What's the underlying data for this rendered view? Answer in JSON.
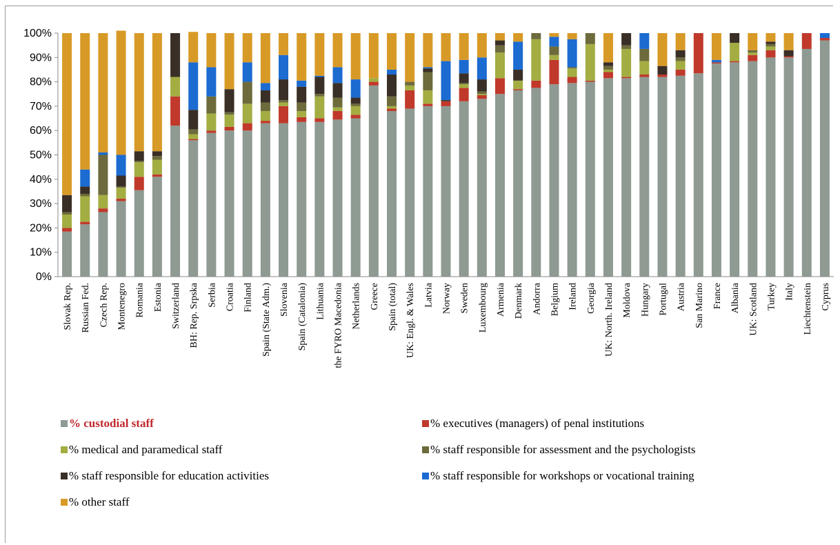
{
  "chart_data": {
    "type": "bar",
    "stacked": true,
    "ylim": [
      0,
      100
    ],
    "yticks": [
      "0%",
      "10%",
      "20%",
      "30%",
      "40%",
      "50%",
      "60%",
      "70%",
      "80%",
      "90%",
      "100%"
    ],
    "grid": false,
    "legend_position": "bottom",
    "categories": [
      "Slovak Rep.",
      "Russian Fed.",
      "Czech Rep.",
      "Montenegro",
      "Romania",
      "Estonia",
      "Switzerland",
      "BH: Rep. Srpska",
      "Serbia",
      "Croatia",
      "Finland",
      "Spain (State Adm.)",
      "Slovenia",
      "Spain (Catalonia)",
      "Lithuania",
      "the FYRO Macedonia",
      "Netherlands",
      "Greece",
      "Spain (total)",
      "UK: Engl. & Wales",
      "Latvia",
      "Norway",
      "Sweden",
      "Luxembourg",
      "Armenia",
      "Denmark",
      "Andorra",
      "Belgium",
      "Ireland",
      "Georgia",
      "UK: North. Ireland",
      "Moldova",
      "Hungary",
      "Portugal",
      "Austria",
      "San Marino",
      "France",
      "Albania",
      "UK: Scotland",
      "Turkey",
      "Italy",
      "Liechtenstein",
      "Cyprus"
    ],
    "series": [
      {
        "name": "% custodial staff",
        "color": "#8e9a92",
        "highlight": true,
        "values": [
          18.5,
          21.5,
          26.5,
          31,
          35.5,
          41,
          62,
          56,
          59,
          60,
          60,
          63,
          63,
          63.5,
          63.5,
          64.5,
          65,
          78.5,
          68,
          69,
          70,
          70,
          72,
          73,
          75,
          76.5,
          77.5,
          79,
          79.5,
          80,
          81.5,
          81.5,
          82,
          82,
          82.5,
          83.5,
          87.5,
          88,
          88.5,
          90,
          90,
          93.5,
          97
        ]
      },
      {
        "name": "% executives (managers) of penal institutions",
        "color": "#c0392b",
        "values": [
          1.5,
          1,
          1.5,
          1,
          5.5,
          1,
          12,
          0.5,
          1,
          1.5,
          3,
          1,
          7,
          2,
          1.5,
          3.5,
          1.5,
          1.5,
          1,
          7.5,
          1,
          2,
          5.5,
          1.5,
          6.5,
          0.5,
          3,
          10,
          2.5,
          0.5,
          2.5,
          0.5,
          1,
          1,
          2.5,
          16.5,
          0.5,
          0.5,
          2.5,
          3,
          0.5,
          6.5,
          1
        ]
      },
      {
        "name": "% medical and paramedical staff",
        "color": "#a3ad42",
        "values": [
          5.5,
          10.5,
          5.5,
          4.5,
          6,
          6,
          8,
          2,
          7,
          5,
          8,
          4,
          1.5,
          2.5,
          9,
          1.5,
          3.5,
          1.5,
          1,
          2,
          5.5,
          0,
          1.5,
          0.5,
          10.5,
          3.5,
          17,
          2,
          3.5,
          15,
          1,
          11.5,
          5.5,
          0,
          3.5,
          0,
          0,
          7.5,
          1,
          1.5,
          0,
          0,
          0
        ]
      },
      {
        "name": "% staff responsible for assessment and the psychologists",
        "color": "#6d6b3c",
        "values": [
          1,
          1,
          16.5,
          0.5,
          0.5,
          1.5,
          0,
          2,
          7,
          1,
          9,
          3.5,
          1,
          3.5,
          1,
          4,
          1,
          0,
          4,
          1.5,
          7.5,
          0,
          0.5,
          1,
          3,
          0,
          2.5,
          3.5,
          0.5,
          4.5,
          1.5,
          1.5,
          5,
          0,
          1.5,
          0,
          0,
          0,
          1,
          1,
          0,
          0,
          0
        ]
      },
      {
        "name": "% staff responsible for education activities",
        "color": "#3a2f26",
        "values": [
          7,
          3,
          0,
          4.5,
          4,
          2,
          18,
          8,
          0,
          9.5,
          0,
          5,
          8.5,
          6.5,
          7,
          6,
          2.5,
          0,
          9,
          0,
          1.5,
          0.5,
          4,
          5,
          2,
          4.5,
          0,
          0,
          0,
          0,
          1.5,
          5,
          0,
          3.5,
          3,
          0,
          0,
          4,
          0,
          1,
          2.5,
          0,
          0
        ]
      },
      {
        "name": "% staff responsible for workshops or vocational training",
        "color": "#1b6bd1",
        "values": [
          0,
          7,
          1,
          8.5,
          0,
          0,
          0,
          19.5,
          12,
          0,
          8,
          3,
          10,
          2.5,
          0.5,
          6.5,
          7.5,
          0,
          2,
          0,
          0.5,
          16,
          5.5,
          9,
          0,
          11.5,
          0,
          4,
          11.5,
          0,
          0,
          0,
          6.5,
          0,
          0,
          0,
          1,
          0,
          0,
          0,
          0,
          0,
          2
        ]
      },
      {
        "name": "% other staff",
        "color": "#d89a27",
        "values": [
          66.5,
          56,
          49,
          51,
          48.5,
          48.5,
          0,
          12.5,
          14,
          23,
          12,
          20.5,
          9,
          19.5,
          17.5,
          14,
          19,
          18.5,
          15,
          20,
          14,
          11.5,
          11,
          10,
          3,
          3.5,
          0,
          1.5,
          2.5,
          0,
          12,
          0,
          0,
          13.5,
          7,
          0,
          11,
          0,
          7,
          3.5,
          7,
          0,
          0
        ]
      }
    ]
  }
}
